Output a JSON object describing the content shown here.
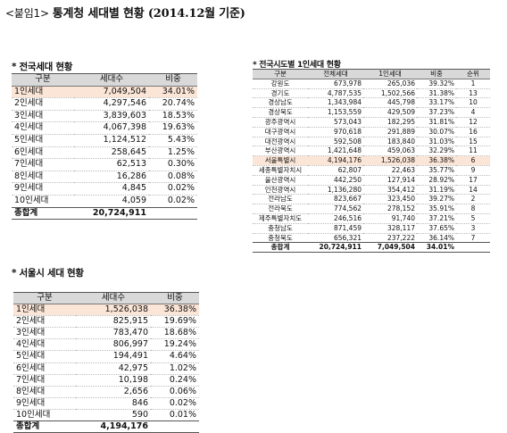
{
  "title": {
    "prefix": "<붙임1>",
    "main": "통계청 세대별 현황 (2014.12월 기준)"
  },
  "national": {
    "label": "* 전국세대 현황",
    "headers": [
      "구분",
      "세대수",
      "비중"
    ],
    "rows": [
      [
        "1인세대",
        "7,049,504",
        "34.01%"
      ],
      [
        "2인세대",
        "4,297,546",
        "20.74%"
      ],
      [
        "3인세대",
        "3,839,603",
        "18.53%"
      ],
      [
        "4인세대",
        "4,067,398",
        "19.63%"
      ],
      [
        "5인세대",
        "1,124,512",
        "5.43%"
      ],
      [
        "6인세대",
        "258,645",
        "1.25%"
      ],
      [
        "7인세대",
        "62,513",
        "0.30%"
      ],
      [
        "8인세대",
        "16,286",
        "0.08%"
      ],
      [
        "9인세대",
        "4,845",
        "0.02%"
      ],
      [
        "10인세대",
        "4,059",
        "0.02%"
      ]
    ],
    "total": [
      "총합계",
      "20,724,911",
      ""
    ]
  },
  "seoul": {
    "label": "* 서울시 세대 현황",
    "headers": [
      "구분",
      "세대수",
      "비중"
    ],
    "rows": [
      [
        "1인세대",
        "1,526,038",
        "36.38%"
      ],
      [
        "2인세대",
        "825,915",
        "19.69%"
      ],
      [
        "3인세대",
        "783,470",
        "18.68%"
      ],
      [
        "4인세대",
        "806,997",
        "19.24%"
      ],
      [
        "5인세대",
        "194,491",
        "4.64%"
      ],
      [
        "6인세대",
        "42,975",
        "1.02%"
      ],
      [
        "7인세대",
        "10,198",
        "0.24%"
      ],
      [
        "8인세대",
        "2,656",
        "0.06%"
      ],
      [
        "9인세대",
        "846",
        "0.02%"
      ],
      [
        "10인세대",
        "590",
        "0.01%"
      ]
    ],
    "total": [
      "총합계",
      "4,194,176",
      ""
    ]
  },
  "regions": {
    "label": "* 전국시도별 1인세대 현황",
    "headers": [
      "구분",
      "전체세대",
      "1인세대",
      "비중",
      "순위"
    ],
    "rows": [
      [
        "강원도",
        "673,978",
        "265,036",
        "39.32%",
        "1"
      ],
      [
        "경기도",
        "4,787,535",
        "1,502,566",
        "31.38%",
        "13"
      ],
      [
        "경상남도",
        "1,343,984",
        "445,798",
        "33.17%",
        "10"
      ],
      [
        "경상북도",
        "1,153,559",
        "429,509",
        "37.23%",
        "4"
      ],
      [
        "광주광역시",
        "573,043",
        "182,295",
        "31.81%",
        "12"
      ],
      [
        "대구광역시",
        "970,618",
        "291,889",
        "30.07%",
        "16"
      ],
      [
        "대전광역시",
        "592,508",
        "183,840",
        "31.03%",
        "15"
      ],
      [
        "부산광역시",
        "1,421,648",
        "459,063",
        "32.29%",
        "11"
      ],
      [
        "서울특별시",
        "4,194,176",
        "1,526,038",
        "36.38%",
        "6"
      ],
      [
        "세종특별자치시",
        "62,807",
        "22,463",
        "35.77%",
        "9"
      ],
      [
        "울산광역시",
        "442,250",
        "127,914",
        "28.92%",
        "17"
      ],
      [
        "인천광역시",
        "1,136,280",
        "354,412",
        "31.19%",
        "14"
      ],
      [
        "전라남도",
        "823,667",
        "323,450",
        "39.27%",
        "2"
      ],
      [
        "전라북도",
        "774,562",
        "278,152",
        "35.91%",
        "8"
      ],
      [
        "제주특별자치도",
        "246,516",
        "91,740",
        "37.21%",
        "5"
      ],
      [
        "충청남도",
        "871,459",
        "328,117",
        "37.65%",
        "3"
      ],
      [
        "충청북도",
        "656,321",
        "237,222",
        "36.14%",
        "7"
      ]
    ],
    "total": [
      "총합계",
      "20,724,911",
      "7,049,504",
      "34.01%",
      ""
    ]
  }
}
